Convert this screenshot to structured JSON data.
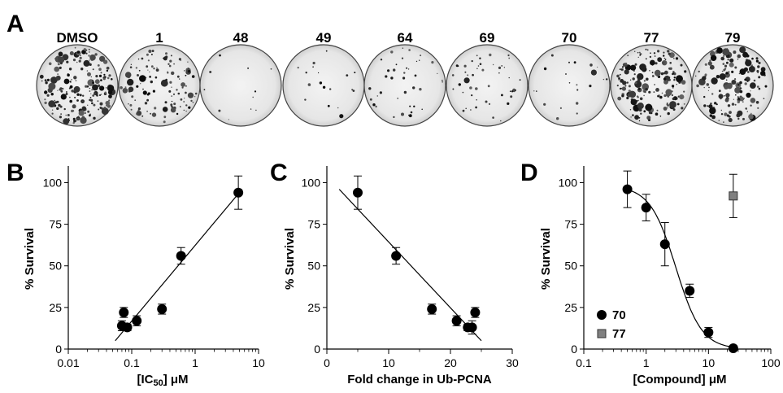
{
  "panel_A": {
    "letter": "A",
    "plates": [
      {
        "label": "DMSO",
        "density": 0.9
      },
      {
        "label": "1",
        "density": 0.55
      },
      {
        "label": "48",
        "density": 0.05
      },
      {
        "label": "49",
        "density": 0.08
      },
      {
        "label": "64",
        "density": 0.18
      },
      {
        "label": "69",
        "density": 0.22
      },
      {
        "label": "70",
        "density": 0.1
      },
      {
        "label": "77",
        "density": 0.85
      },
      {
        "label": "79",
        "density": 0.75
      }
    ]
  },
  "chart_data": [
    {
      "panel": "B",
      "type": "scatter",
      "xscale": "log",
      "xlim": [
        0.01,
        10
      ],
      "ylim": [
        0,
        110
      ],
      "xticks": [
        0.01,
        0.1,
        1,
        10
      ],
      "xtick_labels": [
        "0.01",
        "0.1",
        "1",
        "10"
      ],
      "yticks": [
        0,
        25,
        50,
        75,
        100
      ],
      "ytick_labels": [
        "0",
        "25",
        "50",
        "75",
        "100"
      ],
      "xlabel_pre": "[IC",
      "xlabel_sub": "50",
      "xlabel_post": "] μM",
      "ylabel": "% Survival",
      "points": [
        {
          "x": 0.07,
          "y": 14,
          "err": 3
        },
        {
          "x": 0.075,
          "y": 22,
          "err": 3
        },
        {
          "x": 0.085,
          "y": 13,
          "err": 2
        },
        {
          "x": 0.12,
          "y": 17,
          "err": 3
        },
        {
          "x": 0.3,
          "y": 24,
          "err": 3
        },
        {
          "x": 0.6,
          "y": 56,
          "err": 5
        },
        {
          "x": 4.8,
          "y": 94,
          "err": 10
        }
      ],
      "fit_line": [
        [
          0.055,
          5
        ],
        [
          5.5,
          96
        ]
      ]
    },
    {
      "panel": "C",
      "type": "scatter",
      "xscale": "linear",
      "xlim": [
        0,
        30
      ],
      "ylim": [
        0,
        110
      ],
      "xticks": [
        0,
        10,
        20,
        30
      ],
      "xtick_labels": [
        "0",
        "10",
        "20",
        "30"
      ],
      "yticks": [
        0,
        25,
        50,
        75,
        100
      ],
      "ytick_labels": [
        "0",
        "25",
        "50",
        "75",
        "100"
      ],
      "xlabel": "Fold change in Ub-PCNA",
      "ylabel": "% Survival",
      "points": [
        {
          "x": 5,
          "y": 94,
          "err": 10
        },
        {
          "x": 11.2,
          "y": 56,
          "err": 5
        },
        {
          "x": 17,
          "y": 24,
          "err": 3
        },
        {
          "x": 21,
          "y": 17,
          "err": 3
        },
        {
          "x": 22.8,
          "y": 13,
          "err": 2
        },
        {
          "x": 23.5,
          "y": 13,
          "err": 4
        },
        {
          "x": 24,
          "y": 22,
          "err": 3
        }
      ],
      "fit_line": [
        [
          2,
          96
        ],
        [
          25,
          5
        ]
      ]
    },
    {
      "panel": "D",
      "type": "scatter",
      "xscale": "log",
      "xlim": [
        0.1,
        100
      ],
      "ylim": [
        0,
        110
      ],
      "xticks": [
        0.1,
        1,
        10,
        100
      ],
      "xtick_labels": [
        "0.1",
        "1",
        "10",
        "100"
      ],
      "yticks": [
        0,
        25,
        50,
        75,
        100
      ],
      "ytick_labels": [
        "0",
        "25",
        "50",
        "75",
        "100"
      ],
      "xlabel_pre": "[Compound] ",
      "xlabel_post": "μM",
      "ylabel": "% Survival",
      "series": [
        {
          "name": "70",
          "marker": "circle",
          "points": [
            {
              "x": 0.5,
              "y": 96,
              "err": 11
            },
            {
              "x": 1,
              "y": 85,
              "err": 8
            },
            {
              "x": 2,
              "y": 63,
              "err": 13
            },
            {
              "x": 5,
              "y": 35,
              "err": 4
            },
            {
              "x": 10,
              "y": 10,
              "err": 3
            },
            {
              "x": 25,
              "y": 0.5,
              "err": 0
            }
          ],
          "fit": {
            "top": 98,
            "bottom": 0,
            "ec50": 3,
            "hill": 2.1,
            "xmin": 0.5,
            "xmax": 25
          }
        },
        {
          "name": "77",
          "marker": "square",
          "color": "#808080",
          "points": [
            {
              "x": 25,
              "y": 92,
              "err": 13
            }
          ]
        }
      ],
      "legend_placement": "bottom-left"
    }
  ]
}
